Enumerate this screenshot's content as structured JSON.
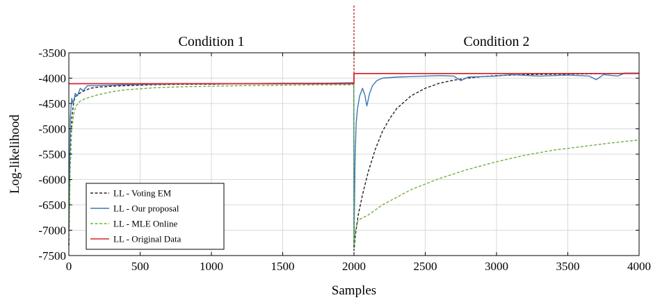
{
  "chart_data": {
    "type": "line",
    "title": "",
    "xlabel": "Samples",
    "ylabel": "Log-likelihood",
    "xlim": [
      0,
      4000
    ],
    "ylim": [
      -7500,
      -3500
    ],
    "xticks": [
      0,
      500,
      1000,
      1500,
      2000,
      2500,
      3000,
      3500,
      4000
    ],
    "yticks": [
      -3500,
      -4000,
      -4500,
      -5000,
      -5500,
      -6000,
      -6500,
      -7000,
      -7500
    ],
    "grid": true,
    "legend_position": "bottom-left",
    "annotations": [
      {
        "text": "Condition 1",
        "x": 1000
      },
      {
        "text": "Condition 2",
        "x": 3000
      }
    ],
    "change_point": 2000,
    "series": [
      {
        "name": "LL - Voting EM",
        "color": "#222222",
        "dash": "dash",
        "points": [
          [
            0,
            -7300
          ],
          [
            10,
            -5600
          ],
          [
            20,
            -4800
          ],
          [
            35,
            -4450
          ],
          [
            50,
            -4350
          ],
          [
            75,
            -4300
          ],
          [
            100,
            -4260
          ],
          [
            150,
            -4200
          ],
          [
            200,
            -4180
          ],
          [
            300,
            -4160
          ],
          [
            400,
            -4150
          ],
          [
            600,
            -4130
          ],
          [
            800,
            -4120
          ],
          [
            1000,
            -4120
          ],
          [
            1200,
            -4110
          ],
          [
            1500,
            -4110
          ],
          [
            1800,
            -4100
          ],
          [
            1999,
            -4100
          ],
          [
            2000,
            -7400
          ],
          [
            2010,
            -7100
          ],
          [
            2030,
            -6700
          ],
          [
            2060,
            -6300
          ],
          [
            2100,
            -5850
          ],
          [
            2150,
            -5400
          ],
          [
            2200,
            -5050
          ],
          [
            2250,
            -4800
          ],
          [
            2300,
            -4600
          ],
          [
            2400,
            -4350
          ],
          [
            2500,
            -4200
          ],
          [
            2600,
            -4100
          ],
          [
            2700,
            -4040
          ],
          [
            2800,
            -4000
          ],
          [
            2900,
            -3970
          ],
          [
            3000,
            -3950
          ],
          [
            3200,
            -3930
          ],
          [
            3500,
            -3920
          ],
          [
            3800,
            -3910
          ],
          [
            4000,
            -3900
          ]
        ]
      },
      {
        "name": "LL - Our proposal",
        "color": "#3a78b5",
        "dash": "solid",
        "points": [
          [
            0,
            -7000
          ],
          [
            10,
            -4800
          ],
          [
            20,
            -4400
          ],
          [
            30,
            -4500
          ],
          [
            45,
            -4300
          ],
          [
            60,
            -4350
          ],
          [
            80,
            -4200
          ],
          [
            100,
            -4250
          ],
          [
            130,
            -4150
          ],
          [
            200,
            -4150
          ],
          [
            300,
            -4140
          ],
          [
            400,
            -4130
          ],
          [
            600,
            -4120
          ],
          [
            800,
            -4110
          ],
          [
            1000,
            -4110
          ],
          [
            1200,
            -4110
          ],
          [
            1500,
            -4100
          ],
          [
            1800,
            -4100
          ],
          [
            1999,
            -4090
          ],
          [
            2000,
            -7300
          ],
          [
            2008,
            -5600
          ],
          [
            2015,
            -4900
          ],
          [
            2025,
            -4600
          ],
          [
            2040,
            -4350
          ],
          [
            2060,
            -4200
          ],
          [
            2075,
            -4320
          ],
          [
            2090,
            -4550
          ],
          [
            2110,
            -4300
          ],
          [
            2130,
            -4150
          ],
          [
            2160,
            -4050
          ],
          [
            2200,
            -4000
          ],
          [
            2300,
            -3980
          ],
          [
            2400,
            -3970
          ],
          [
            2500,
            -3960
          ],
          [
            2600,
            -3950
          ],
          [
            2700,
            -3960
          ],
          [
            2750,
            -4050
          ],
          [
            2800,
            -3980
          ],
          [
            3000,
            -3960
          ],
          [
            3100,
            -3930
          ],
          [
            3300,
            -3960
          ],
          [
            3500,
            -3940
          ],
          [
            3650,
            -3960
          ],
          [
            3700,
            -4030
          ],
          [
            3750,
            -3930
          ],
          [
            3850,
            -3960
          ],
          [
            3900,
            -3900
          ],
          [
            4000,
            -3900
          ]
        ]
      },
      {
        "name": "LL - MLE Online",
        "color": "#6fae3e",
        "dash": "dash",
        "points": [
          [
            0,
            -7300
          ],
          [
            10,
            -5800
          ],
          [
            20,
            -5000
          ],
          [
            35,
            -4700
          ],
          [
            50,
            -4550
          ],
          [
            80,
            -4450
          ],
          [
            120,
            -4400
          ],
          [
            200,
            -4330
          ],
          [
            300,
            -4270
          ],
          [
            400,
            -4230
          ],
          [
            600,
            -4190
          ],
          [
            800,
            -4170
          ],
          [
            1000,
            -4160
          ],
          [
            1200,
            -4150
          ],
          [
            1500,
            -4140
          ],
          [
            1800,
            -4130
          ],
          [
            1999,
            -4130
          ],
          [
            2000,
            -7300
          ],
          [
            2010,
            -7000
          ],
          [
            2030,
            -6800
          ],
          [
            2100,
            -6700
          ],
          [
            2200,
            -6500
          ],
          [
            2300,
            -6350
          ],
          [
            2400,
            -6200
          ],
          [
            2600,
            -5980
          ],
          [
            2800,
            -5800
          ],
          [
            3000,
            -5650
          ],
          [
            3200,
            -5520
          ],
          [
            3400,
            -5420
          ],
          [
            3600,
            -5350
          ],
          [
            3800,
            -5280
          ],
          [
            4000,
            -5220
          ]
        ]
      },
      {
        "name": "LL - Original Data",
        "color": "#d9262e",
        "dash": "solid",
        "points": [
          [
            0,
            -4110
          ],
          [
            2000,
            -4110
          ],
          [
            2000,
            -3910
          ],
          [
            4000,
            -3910
          ]
        ]
      }
    ]
  }
}
